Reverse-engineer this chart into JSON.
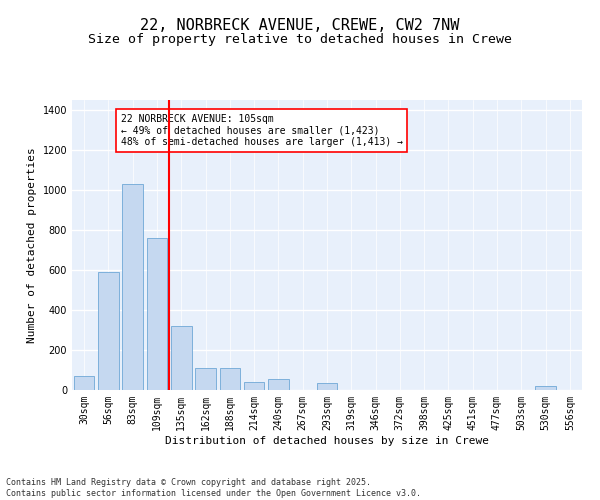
{
  "title_line1": "22, NORBRECK AVENUE, CREWE, CW2 7NW",
  "title_line2": "Size of property relative to detached houses in Crewe",
  "xlabel": "Distribution of detached houses by size in Crewe",
  "ylabel": "Number of detached properties",
  "categories": [
    "30sqm",
    "56sqm",
    "83sqm",
    "109sqm",
    "135sqm",
    "162sqm",
    "188sqm",
    "214sqm",
    "240sqm",
    "267sqm",
    "293sqm",
    "319sqm",
    "346sqm",
    "372sqm",
    "398sqm",
    "425sqm",
    "451sqm",
    "477sqm",
    "503sqm",
    "530sqm",
    "556sqm"
  ],
  "values": [
    70,
    590,
    1030,
    760,
    320,
    110,
    110,
    40,
    55,
    0,
    35,
    0,
    0,
    0,
    0,
    0,
    0,
    0,
    0,
    20,
    0
  ],
  "bar_color": "#c5d8f0",
  "bar_edge_color": "#6fa8d6",
  "vline_color": "red",
  "annotation_text": "22 NORBRECK AVENUE: 105sqm\n← 49% of detached houses are smaller (1,423)\n48% of semi-detached houses are larger (1,413) →",
  "annotation_box_color": "white",
  "annotation_box_edge": "red",
  "ylim": [
    0,
    1450
  ],
  "yticks": [
    0,
    200,
    400,
    600,
    800,
    1000,
    1200,
    1400
  ],
  "background_color": "#e8f0fb",
  "footer_text": "Contains HM Land Registry data © Crown copyright and database right 2025.\nContains public sector information licensed under the Open Government Licence v3.0.",
  "title_fontsize": 11,
  "subtitle_fontsize": 9.5,
  "tick_fontsize": 7,
  "label_fontsize": 8,
  "annotation_fontsize": 7,
  "footer_fontsize": 6
}
